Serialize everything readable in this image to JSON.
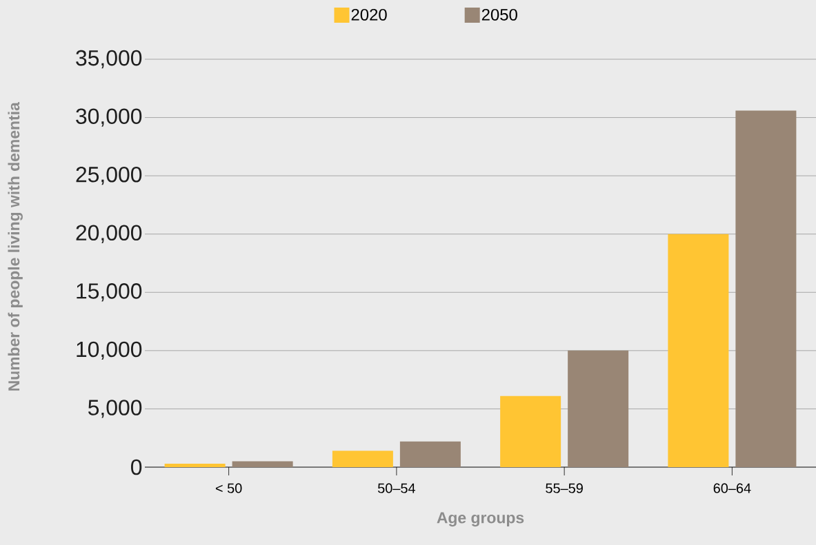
{
  "chart_data": {
    "type": "bar",
    "xlabel": "Age groups",
    "ylabel": "Number of people living with dementia",
    "categories": [
      "< 50",
      "50–54",
      "55–59",
      "60–64"
    ],
    "series": [
      {
        "name": "2020",
        "color": "#ffc533",
        "values": [
          300,
          1400,
          6100,
          20000
        ]
      },
      {
        "name": "2050",
        "color": "#998675",
        "values": [
          500,
          2200,
          10000,
          30600
        ]
      }
    ],
    "ylim": [
      0,
      35000
    ],
    "yticks": [
      {
        "value": 0,
        "label": "0"
      },
      {
        "value": 5000,
        "label": "5,000"
      },
      {
        "value": 10000,
        "label": "10,000"
      },
      {
        "value": 15000,
        "label": "15,000"
      },
      {
        "value": 20000,
        "label": "20,000"
      },
      {
        "value": 25000,
        "label": "25,000"
      },
      {
        "value": 30000,
        "label": "30,000"
      },
      {
        "value": 35000,
        "label": "35,000"
      }
    ],
    "grid": "y",
    "legend": "top"
  }
}
